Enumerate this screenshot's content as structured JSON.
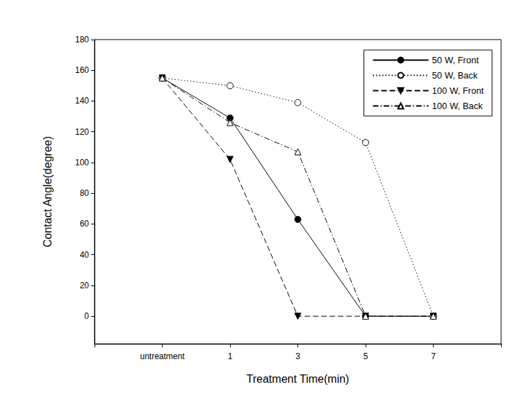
{
  "chart_data": {
    "type": "line",
    "x_label": "Treatment Time(min)",
    "y_label": "Contact Angle(degree)",
    "categories": [
      null,
      "untreatment",
      "1",
      "3",
      "5",
      "7",
      null
    ],
    "ylim": [
      -18,
      180
    ],
    "yticks": [
      0,
      20,
      40,
      60,
      80,
      100,
      120,
      140,
      160,
      180
    ],
    "grid": false,
    "legend": "upper right",
    "series": [
      {
        "name": "50 W, Front",
        "color": "#000000",
        "marker": "circle",
        "line_style": "solid",
        "values": [
          null,
          155,
          129,
          63,
          0,
          0,
          null
        ]
      },
      {
        "name": "50 W, Back",
        "color": "#000000",
        "marker": "circle_open",
        "line_style": "dotted",
        "values": [
          null,
          155,
          150,
          139,
          113,
          0,
          null
        ]
      },
      {
        "name": "100 W, Front",
        "color": "#000000",
        "marker": "triangle_down",
        "line_style": "dashed",
        "values": [
          null,
          155,
          102,
          0,
          0,
          0,
          null
        ]
      },
      {
        "name": "100 W, Back",
        "color": "#000000",
        "marker": "triangle_up_open",
        "line_style": "dashdot",
        "values": [
          null,
          155,
          126,
          107,
          0,
          0,
          null
        ]
      }
    ]
  }
}
